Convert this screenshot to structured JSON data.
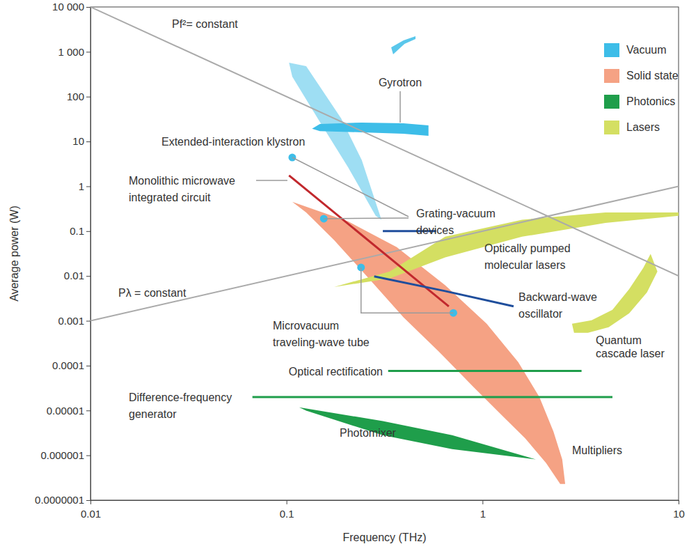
{
  "chart_data": {
    "type": "line",
    "x_label": "Frequency (THz)",
    "y_label": "Average power (W)",
    "log": true,
    "grid": false,
    "legend": "upper right",
    "xlim": [
      0.01,
      10
    ],
    "ylim": [
      1e-07,
      10000
    ],
    "xticks": [
      0.01,
      0.1,
      1,
      10
    ],
    "yticks": [
      {
        "value": 1e-07,
        "label": "0.0000001"
      },
      1e-06,
      1e-05,
      0.0001,
      0.001,
      0.01,
      0.1,
      1,
      10,
      100,
      {
        "value": 1000,
        "label": "1 000"
      },
      {
        "value": 10000,
        "label": "10 000"
      }
    ],
    "groups": [
      {
        "name": "Vacuum",
        "color": "#3dbde8"
      },
      {
        "name": "Solid state",
        "color": "#f5a284"
      },
      {
        "name": "Photonics",
        "color": "#1f9e4b"
      },
      {
        "name": "Lasers",
        "color": "#d4df62"
      }
    ],
    "series": [
      {
        "name": "Pf²= constant",
        "color": "#aaaaaa",
        "parts": [
          {
            "type": "line",
            "x": [
              0.01,
              10
            ],
            "values": [
              10000,
              0.01
            ]
          }
        ]
      },
      {
        "name": "Pλ = constant",
        "color": "#aaaaaa",
        "parts": [
          {
            "type": "line",
            "x": [
              0.01,
              10
            ],
            "values": [
              0.001,
              1
            ]
          }
        ]
      },
      {
        "name": "Gyrotron",
        "group": "Vacuum",
        "parts": [
          {
            "type": "region",
            "x": [
              0.135,
              0.148,
              0.242,
              0.395,
              0.53,
              0.53,
              0.395,
              0.242,
              0.148
            ],
            "values": [
              19.2,
              24.6,
              26.4,
              25.5,
              22.9,
              13.4,
              14.9,
              16.0,
              17.0
            ]
          },
          {
            "type": "region",
            "x": [
              0.103,
              0.126,
              0.19,
              0.242,
              0.305,
              0.285,
              0.206,
              0.148,
              0.107
            ],
            "values": [
              573,
              479,
              32.8,
              3.84,
              0.18,
              0.22,
              2.68,
              27.4,
              280
            ]
          },
          {
            "type": "region",
            "x": [
              0.342,
              0.395,
              0.455,
              0.455,
              0.4,
              0.35
            ],
            "values": [
              1256,
              1800,
              2228,
              1930,
              1503,
              879
            ]
          }
        ]
      },
      {
        "name": "Multipliers",
        "group": "Solid state",
        "parts": [
          {
            "type": "region",
            "x": [
              0.107,
              0.206,
              0.365,
              0.645,
              1.05,
              1.52,
              1.95,
              2.3,
              2.55,
              2.64,
              2.49,
              2.11,
              1.65,
              1.24,
              0.895,
              0.596,
              0.395,
              0.263,
              0.175,
              0.126
            ],
            "values": [
              0.45,
              0.165,
              0.044,
              0.0062,
              0.00086,
              0.00012,
              2e-05,
              3.4e-06,
              8.1e-07,
              2.3e-07,
              2.3e-07,
              6.7e-07,
              2.4e-06,
              8.2e-06,
              3.4e-05,
              0.00021,
              0.0012,
              0.0088,
              0.063,
              0.26
            ]
          }
        ]
      },
      {
        "name": "Optically pumped\nmolecular lasers",
        "group": "Lasers",
        "parts": [
          {
            "type": "region",
            "x": [
              0.175,
              0.336,
              0.645,
              1.59,
              4.24,
              10,
              10,
              4.24,
              1.59,
              0.645,
              0.336
            ],
            "values": [
              0.0057,
              0.0126,
              0.075,
              0.18,
              0.26,
              0.26,
              0.22,
              0.153,
              0.075,
              0.026,
              0.0088
            ]
          }
        ]
      },
      {
        "name": "Quantum\ncascade laser",
        "group": "Lasers",
        "parts": [
          {
            "type": "region",
            "x": [
              2.86,
              3.6,
              4.6,
              5.6,
              6.6,
              7.2,
              7.8,
              6.9,
              5.6,
              4.4,
              3.45,
              2.93
            ],
            "values": [
              0.00086,
              0.00103,
              0.00176,
              0.0051,
              0.015,
              0.031,
              0.0126,
              0.0043,
              0.00147,
              0.00072,
              0.00054,
              0.00054
            ]
          }
        ]
      },
      {
        "name": "Photomixer",
        "group": "Photonics",
        "parts": [
          {
            "type": "region",
            "x": [
              0.116,
              0.31,
              0.7,
              1.87,
              0.7,
              0.31,
              0.126
            ],
            "values": [
              1.18e-05,
              5.8e-06,
              2.8e-06,
              8.1e-07,
              1.38e-06,
              2.8e-06,
              9.9e-06
            ]
          }
        ]
      },
      {
        "name": "Optical rectification",
        "group": "Photonics",
        "parts": [
          {
            "type": "line",
            "x": [
              0.33,
              3.2
            ],
            "values": [
              7.6e-05,
              7.6e-05
            ]
          }
        ]
      },
      {
        "name": "Difference-frequency\ngenerator",
        "group": "Photonics",
        "parts": [
          {
            "type": "line",
            "x": [
              0.067,
              4.6
            ],
            "values": [
              2e-05,
              2e-05
            ]
          }
        ]
      },
      {
        "name": "Extended-interaction klystron",
        "group": "Vacuum",
        "parts": [
          {
            "type": "point",
            "x": [
              0.107
            ],
            "values": [
              4.4
            ]
          }
        ]
      },
      {
        "name": "Monolithic microwave\nintegrated circuit",
        "color": "#c1282d",
        "parts": [
          {
            "type": "line",
            "x": [
              0.103,
              0.673
            ],
            "values": [
              1.75,
              0.0021
            ]
          }
        ]
      },
      {
        "name": "Grating-vacuum\ndevices",
        "group": "Vacuum",
        "parts": [
          {
            "type": "point",
            "x": [
              0.155
            ],
            "values": [
              0.19
            ]
          },
          {
            "type": "line",
            "color": "#1f4e9c",
            "x": [
              0.31,
              0.58
            ],
            "values": [
              0.1,
              0.1
            ]
          }
        ]
      },
      {
        "name": "Microvacuum\ntraveling-wave tube",
        "group": "Vacuum",
        "parts": [
          {
            "type": "point",
            "x": [
              0.24,
              0.71
            ],
            "values": [
              0.0155,
              0.0015
            ]
          }
        ]
      },
      {
        "name": "Backward-wave\noscillator",
        "color": "#1f4e9c",
        "parts": [
          {
            "type": "line",
            "x": [
              0.28,
              0.645,
              1.44
            ],
            "values": [
              0.0098,
              0.0046,
              0.0021
            ]
          }
        ]
      }
    ]
  }
}
